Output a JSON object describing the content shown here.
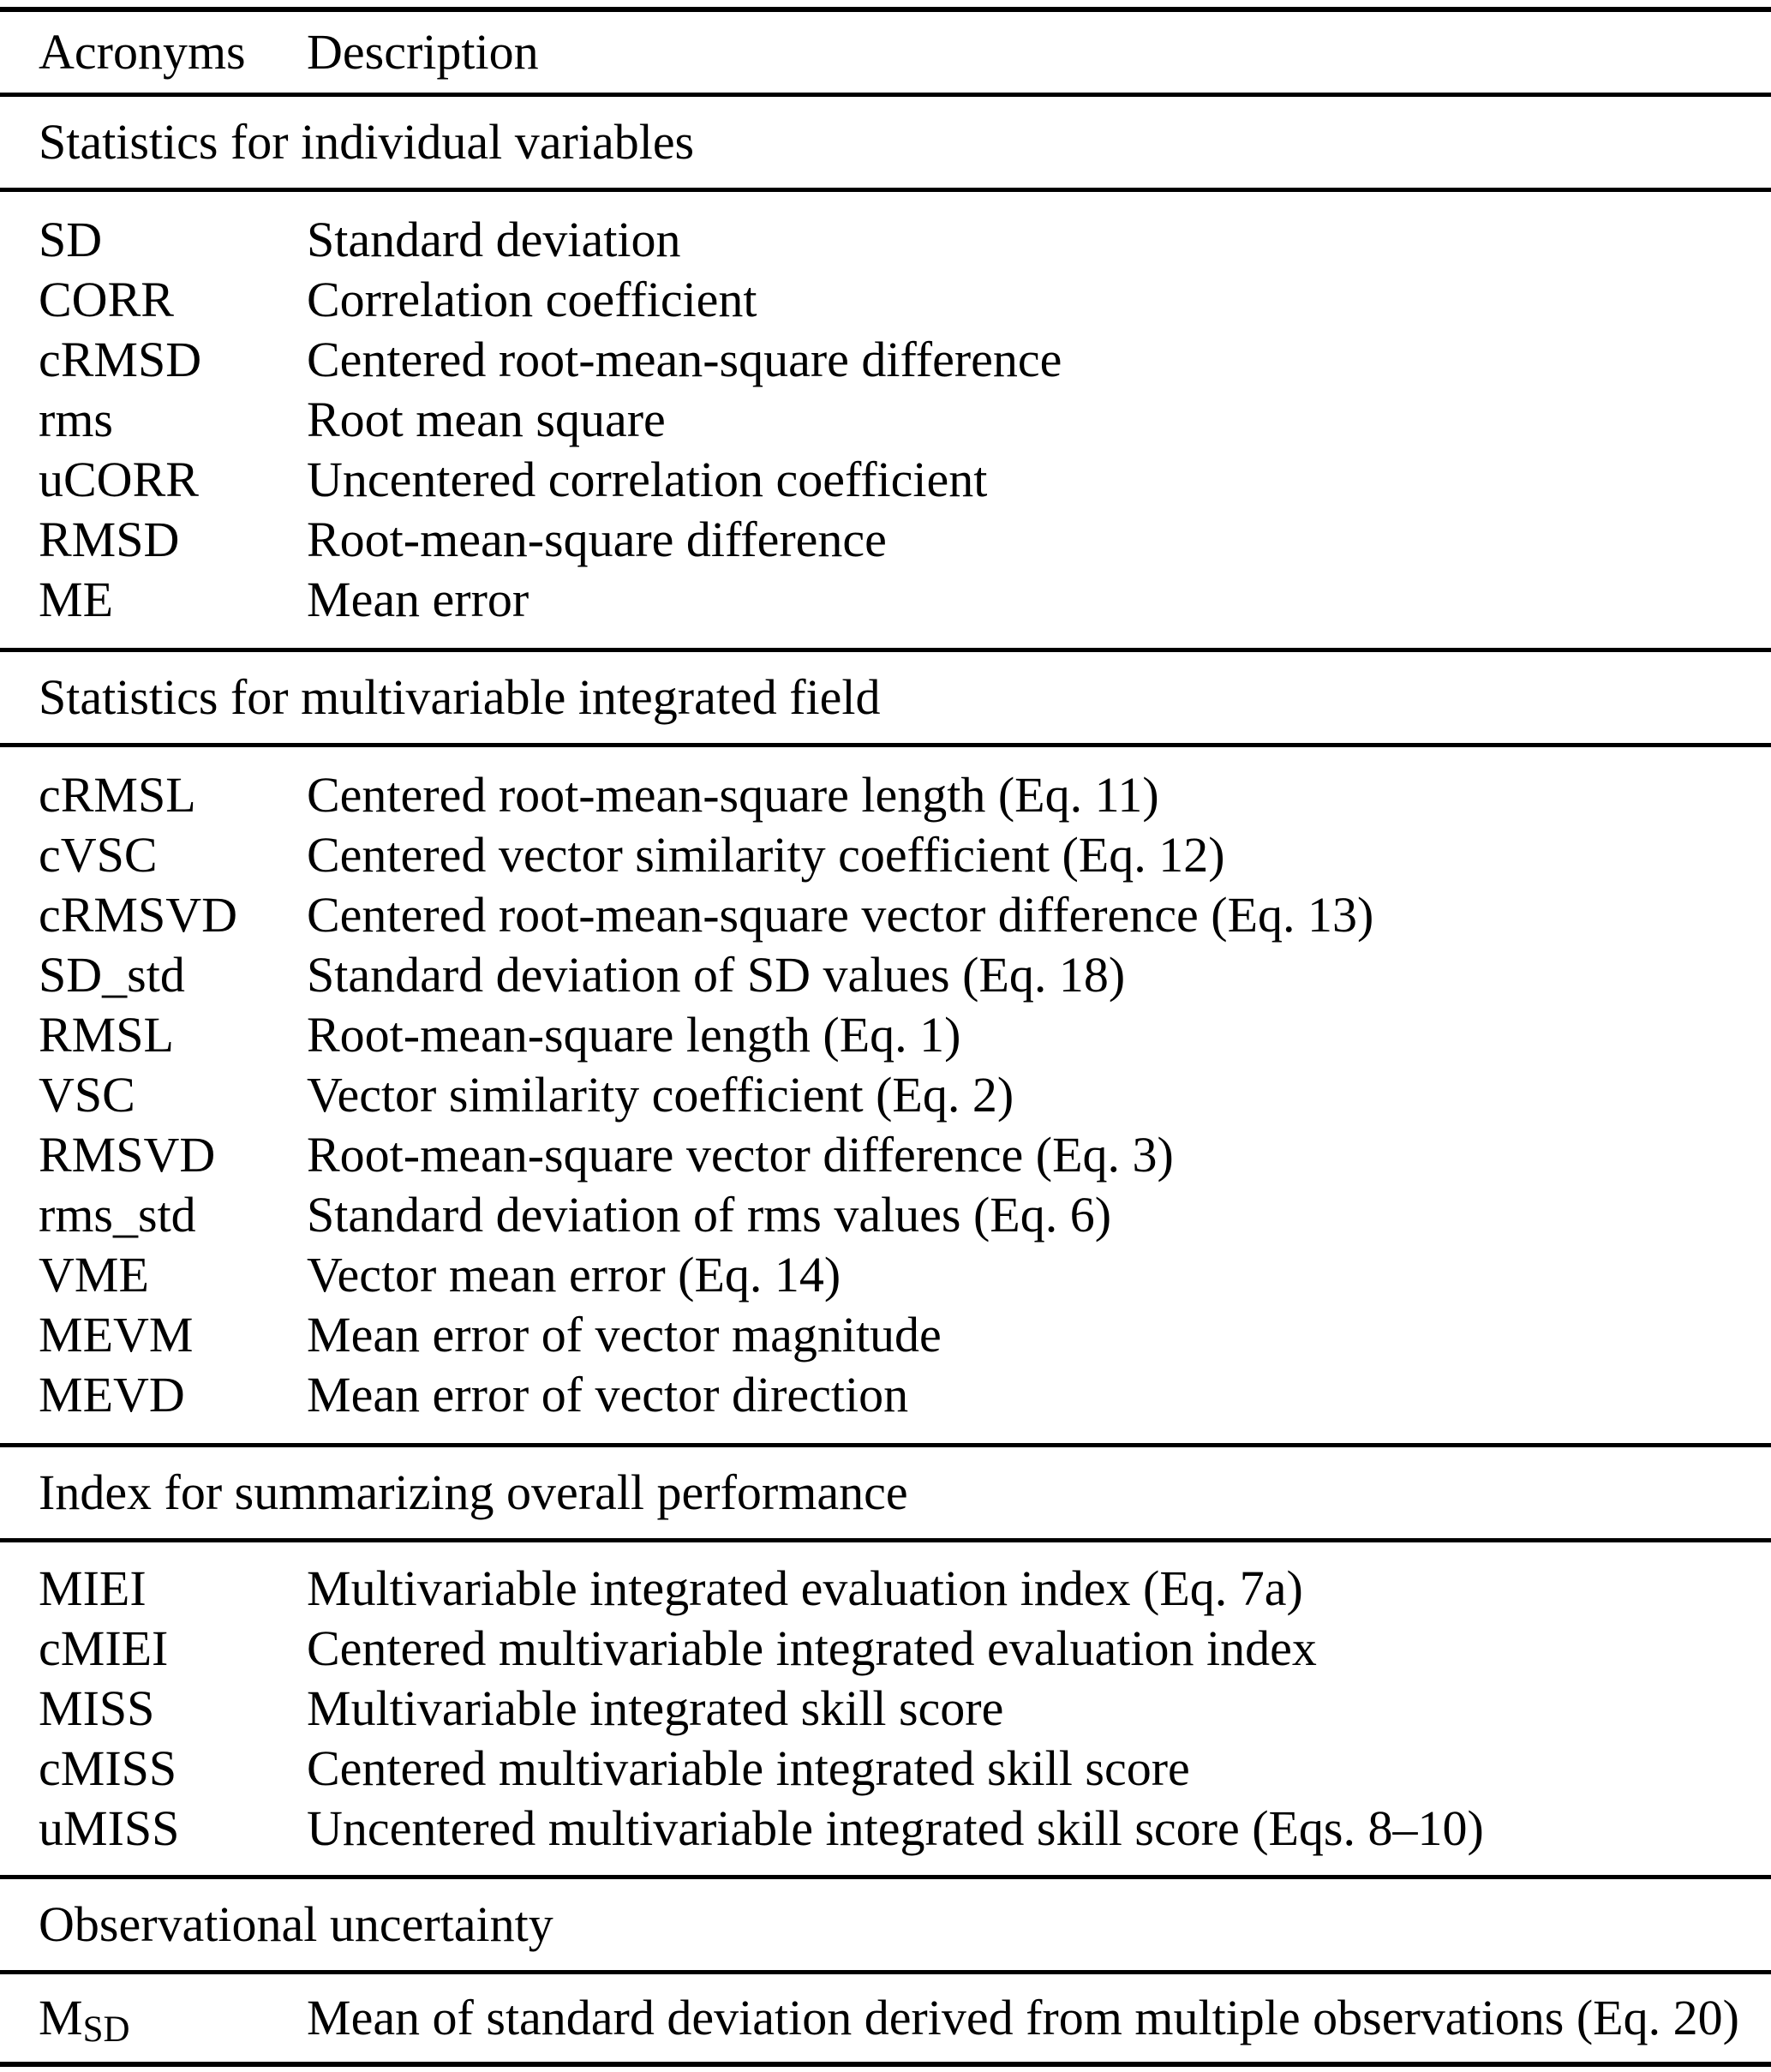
{
  "table": {
    "header": {
      "acronym": "Acronyms",
      "description": "Description"
    },
    "sections": [
      {
        "title": "Statistics for individual variables",
        "rows": [
          {
            "acronym": "SD",
            "description": "Standard deviation"
          },
          {
            "acronym": "CORR",
            "description": "Correlation coefficient"
          },
          {
            "acronym": "cRMSD",
            "description": "Centered root-mean-square difference"
          },
          {
            "acronym": "rms",
            "description": "Root mean square"
          },
          {
            "acronym": "uCORR",
            "description": "Uncentered correlation coefficient"
          },
          {
            "acronym": "RMSD",
            "description": "Root-mean-square difference"
          },
          {
            "acronym": "ME",
            "description": "Mean error"
          }
        ]
      },
      {
        "title": "Statistics for multivariable integrated field",
        "rows": [
          {
            "acronym": "cRMSL",
            "description": "Centered root-mean-square length (Eq. 11)"
          },
          {
            "acronym": "cVSC",
            "description": "Centered vector similarity coefficient (Eq. 12)"
          },
          {
            "acronym": "cRMSVD",
            "description": "Centered root-mean-square vector difference (Eq. 13)"
          },
          {
            "acronym": "SD_std",
            "description": "Standard deviation of SD values (Eq. 18)"
          },
          {
            "acronym": "RMSL",
            "description": "Root-mean-square length (Eq. 1)"
          },
          {
            "acronym": "VSC",
            "description": "Vector similarity coefficient (Eq. 2)"
          },
          {
            "acronym": "RMSVD",
            "description": "Root-mean-square vector difference (Eq. 3)"
          },
          {
            "acronym": "rms_std",
            "description": "Standard deviation of rms values (Eq. 6)"
          },
          {
            "acronym": "VME",
            "description": "Vector mean error (Eq. 14)"
          },
          {
            "acronym": "MEVM",
            "description": "Mean error of vector magnitude"
          },
          {
            "acronym": "MEVD",
            "description": "Mean error of vector direction"
          }
        ]
      },
      {
        "title": "Index for summarizing overall performance",
        "rows": [
          {
            "acronym": "MIEI",
            "description": "Multivariable integrated evaluation index (Eq. 7a)"
          },
          {
            "acronym": "cMIEI",
            "description": "Centered multivariable integrated evaluation index"
          },
          {
            "acronym": "MISS",
            "description": "Multivariable integrated skill score"
          },
          {
            "acronym": "cMISS",
            "description": "Centered multivariable integrated skill score"
          },
          {
            "acronym": "uMISS",
            "description": "Uncentered multivariable integrated skill score (Eqs. 8–10)"
          }
        ]
      },
      {
        "title": "Observational uncertainty",
        "rows": [
          {
            "acronym": "M",
            "acronym_sub": "SD",
            "description": "Mean of standard deviation derived from multiple observations (Eq. 20)"
          }
        ]
      }
    ]
  }
}
